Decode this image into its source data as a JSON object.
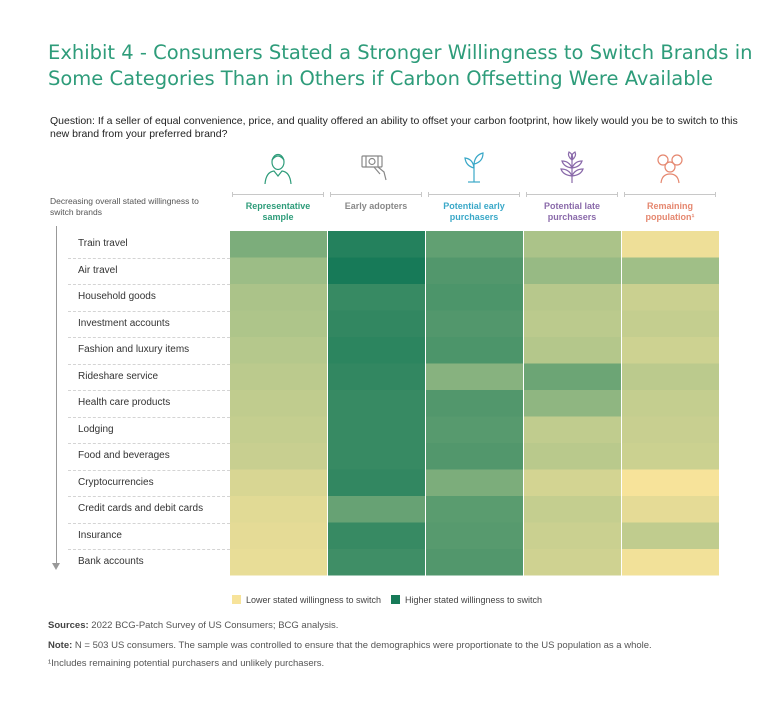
{
  "title": {
    "line1": "Exhibit 4 - Consumers Stated a Stronger Willingness to Switch Brands in",
    "line2": "Some Categories Than in Others if Carbon Offsetting Were Available"
  },
  "question": "Question: If a seller of equal convenience, price, and quality offered an ability to offset your carbon footprint, how likely would you be to switch to this new brand from your preferred brand?",
  "axis_note": "Decreasing overall stated willingness to switch brands",
  "colors": {
    "low": "#f7e39a",
    "high": "#177a58",
    "title": "#2e9c7a",
    "col_colors": [
      "#2e9c7a",
      "#888888",
      "#3aa8c8",
      "#8a6aaa",
      "#e5876f"
    ]
  },
  "chart_data": {
    "type": "heatmap",
    "columns": [
      {
        "label": "Representative sample",
        "icon": "person-icon"
      },
      {
        "label": "Early adopters",
        "icon": "hand-money-icon"
      },
      {
        "label": "Potential early purchasers",
        "icon": "sprout-icon"
      },
      {
        "label": "Potential late purchasers",
        "icon": "plant-icon"
      },
      {
        "label": "Remaining population¹",
        "icon": "group-icon"
      }
    ],
    "rows": [
      "Train travel",
      "Air travel",
      "Household goods",
      "Investment accounts",
      "Fashion and luxury items",
      "Rideshare service",
      "Health care products",
      "Lodging",
      "Food and beverages",
      "Cryptocurrencies",
      "Credit cards and debit cards",
      "Insurance",
      "Bank accounts"
    ],
    "scale": "0 = lower stated willingness to switch, 1 = higher stated willingness to switch",
    "values": [
      [
        0.62,
        0.95,
        0.72,
        0.42,
        0.05
      ],
      [
        0.5,
        1.0,
        0.78,
        0.52,
        0.48
      ],
      [
        0.42,
        0.88,
        0.8,
        0.35,
        0.25
      ],
      [
        0.4,
        0.9,
        0.78,
        0.33,
        0.28
      ],
      [
        0.36,
        0.92,
        0.8,
        0.37,
        0.23
      ],
      [
        0.33,
        0.9,
        0.58,
        0.68,
        0.33
      ],
      [
        0.3,
        0.88,
        0.78,
        0.55,
        0.28
      ],
      [
        0.28,
        0.88,
        0.76,
        0.3,
        0.26
      ],
      [
        0.26,
        0.88,
        0.78,
        0.34,
        0.24
      ],
      [
        0.17,
        0.9,
        0.62,
        0.2,
        0.0
      ],
      [
        0.12,
        0.7,
        0.75,
        0.28,
        0.1
      ],
      [
        0.1,
        0.88,
        0.76,
        0.25,
        0.3
      ],
      [
        0.08,
        0.85,
        0.78,
        0.22,
        0.03
      ]
    ],
    "legend": {
      "low_label": "Lower stated willingness to switch",
      "high_label": "Higher stated willingness to switch"
    }
  },
  "footnotes": {
    "sources_label": "Sources:",
    "sources_text": "2022 BCG-Patch Survey of US Consumers; BCG analysis.",
    "note_label": "Note:",
    "note_text": "N = 503 US consumers. The sample was controlled to ensure that the demographics were proportionate to the US population as a whole.",
    "footnote1": "¹Includes remaining potential purchasers and unlikely purchasers."
  }
}
